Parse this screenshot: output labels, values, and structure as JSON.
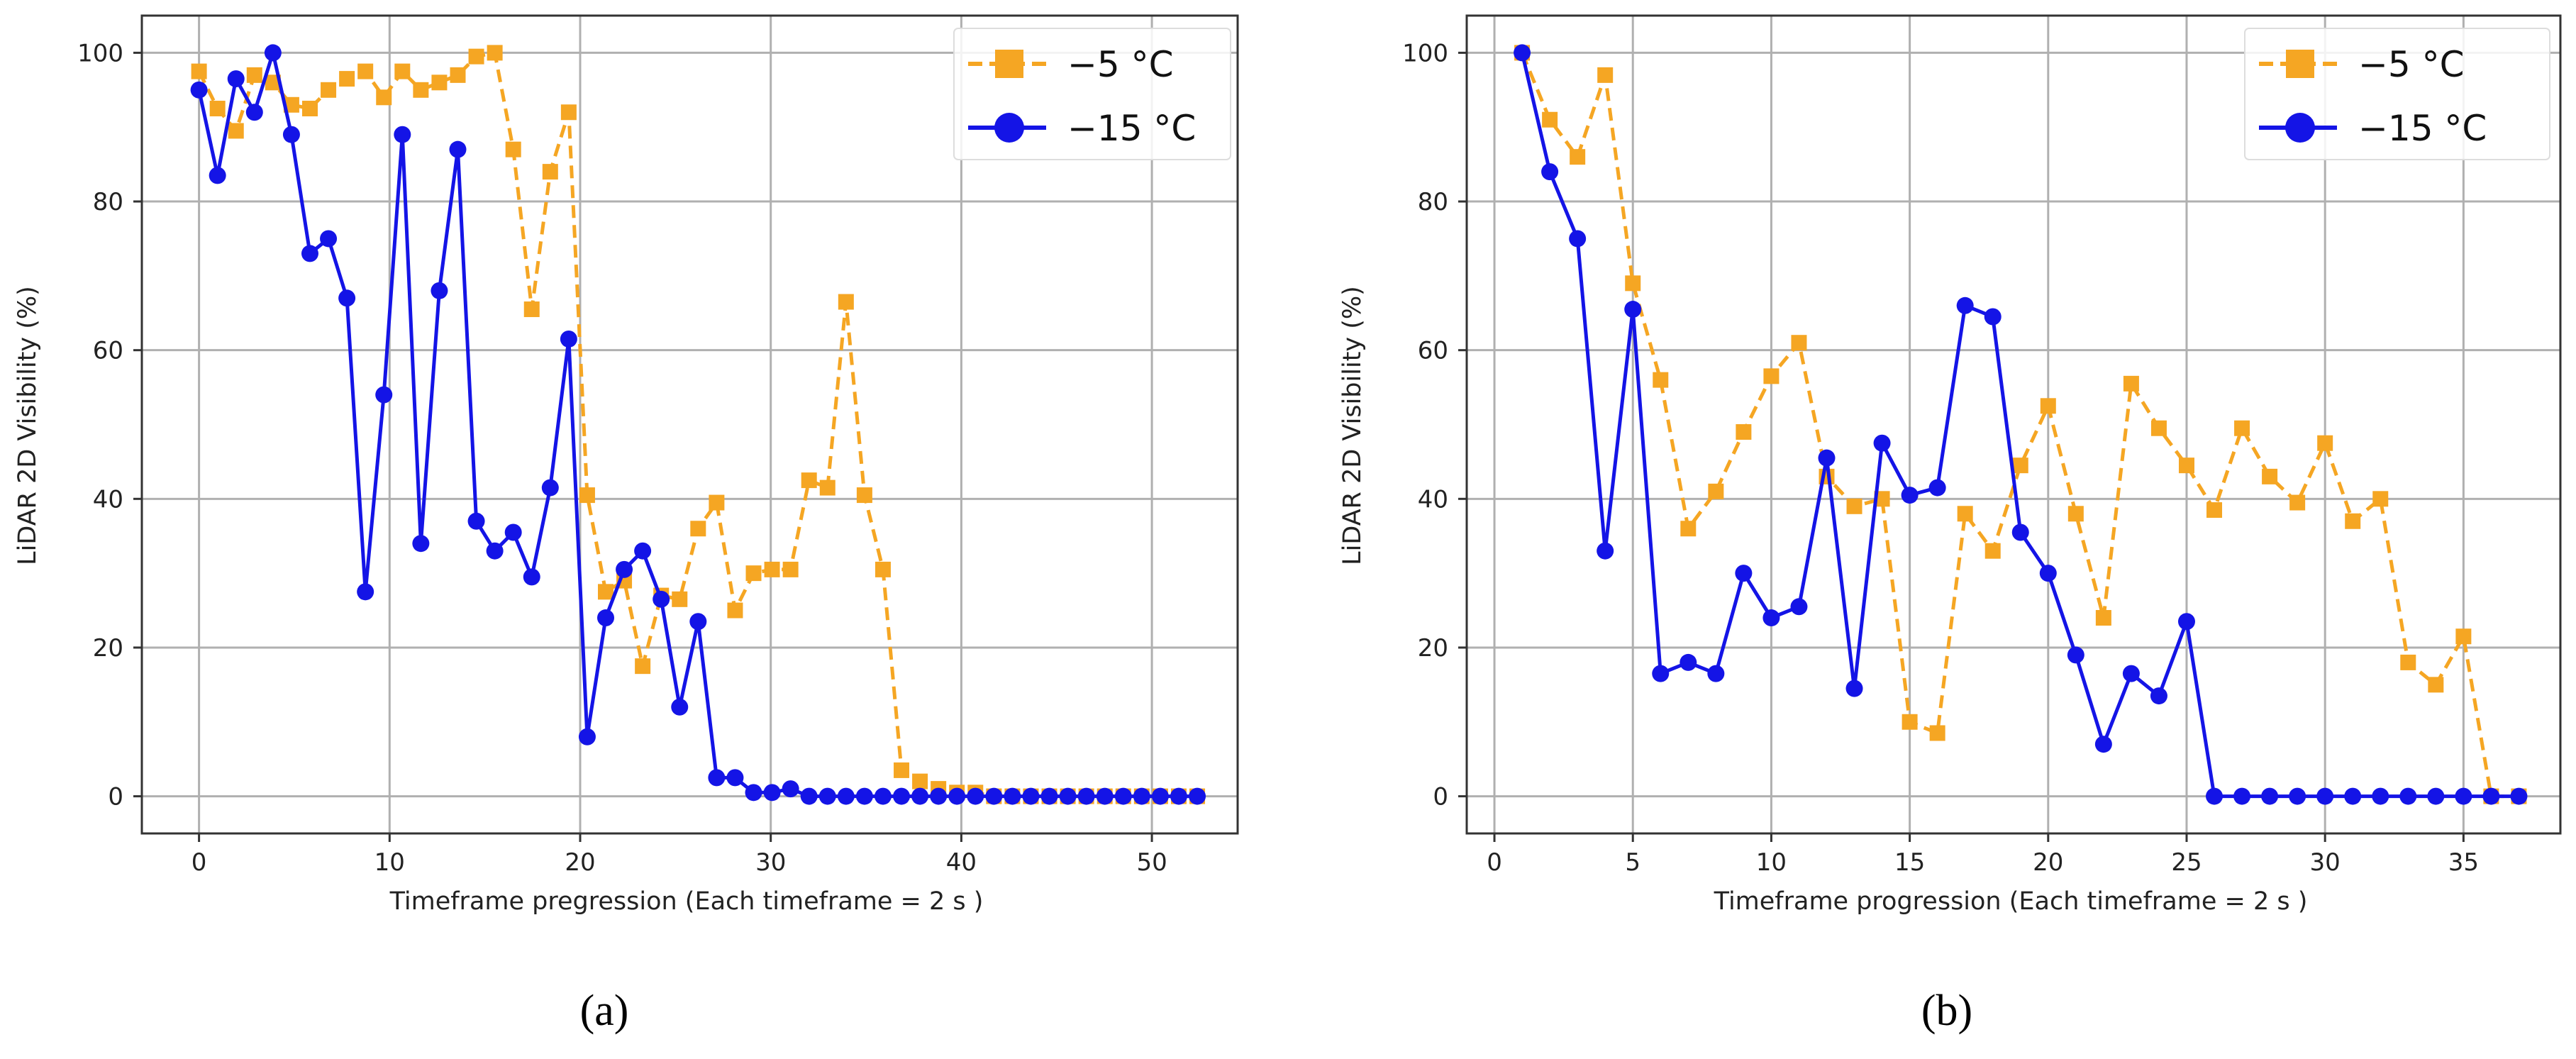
{
  "chart_data": [
    {
      "type": "line",
      "panel_label": "(a)",
      "xlabel": "Timeframe pregression (Each timeframe = 2 s )",
      "ylabel": "LiDAR 2D Visibility (%)",
      "xlim": [
        -3,
        54.5
      ],
      "ylim": [
        -5,
        105
      ],
      "xticks": [
        0,
        10,
        20,
        30,
        40,
        50
      ],
      "yticks": [
        0,
        20,
        40,
        60,
        80,
        100
      ],
      "grid": true,
      "legend_position": "top-right",
      "series": [
        {
          "name": "−5 °C",
          "color": "#f5a623",
          "line_style": "dashed",
          "marker": "square",
          "x": [
            0,
            0.97,
            1.94,
            2.91,
            3.88,
            4.85,
            5.82,
            6.79,
            7.76,
            8.73,
            9.7,
            10.67,
            11.64,
            12.61,
            13.58,
            14.55,
            15.52,
            16.49,
            17.46,
            18.43,
            19.4,
            20.37,
            21.34,
            22.31,
            23.28,
            24.25,
            25.22,
            26.19,
            27.16,
            28.13,
            29.1,
            30.07,
            31.04,
            32.01,
            32.98,
            33.95,
            34.92,
            35.89,
            36.86,
            37.83,
            38.8,
            39.77,
            40.74,
            41.71,
            42.68,
            43.65,
            44.62,
            45.59,
            46.56,
            47.53,
            48.5,
            49.47,
            50.44,
            51.41,
            52.38
          ],
          "y": [
            97.5,
            92.5,
            89.5,
            97,
            96,
            93,
            92.5,
            95,
            96.5,
            97.5,
            94,
            97.5,
            95,
            96,
            97,
            99.5,
            100,
            87,
            65.5,
            84,
            92,
            40.5,
            27.5,
            29,
            17.5,
            27,
            26.5,
            36,
            39.5,
            25,
            30,
            30.5,
            30.5,
            42.5,
            41.5,
            66.5,
            40.5,
            30.5,
            3.5,
            2,
            1,
            0.5,
            0.5,
            0,
            0,
            0,
            0,
            0,
            0,
            0,
            0,
            0,
            0,
            0,
            0
          ]
        },
        {
          "name": "−15 °C",
          "color": "#1414e6",
          "line_style": "solid",
          "marker": "circle",
          "x": [
            0,
            0.97,
            1.94,
            2.91,
            3.88,
            4.85,
            5.82,
            6.79,
            7.76,
            8.73,
            9.7,
            10.67,
            11.64,
            12.61,
            13.58,
            14.55,
            15.52,
            16.49,
            17.46,
            18.43,
            19.4,
            20.37,
            21.34,
            22.31,
            23.28,
            24.25,
            25.22,
            26.19,
            27.16,
            28.13,
            29.1,
            30.07,
            31.04,
            32.01,
            32.98,
            33.95,
            34.92,
            35.89,
            36.86,
            37.83,
            38.8,
            39.77,
            40.74,
            41.71,
            42.68,
            43.65,
            44.62,
            45.59,
            46.56,
            47.53,
            48.5,
            49.47,
            50.44,
            51.41,
            52.38
          ],
          "y": [
            95,
            83.5,
            96.5,
            92,
            100,
            89,
            73,
            75,
            67,
            27.5,
            54,
            89,
            34,
            68,
            87,
            37,
            33,
            35.5,
            29.5,
            41.5,
            61.5,
            8,
            24,
            30.5,
            33,
            26.5,
            12,
            23.5,
            2.5,
            2.5,
            0.5,
            0.5,
            1,
            0,
            0,
            0,
            0,
            0,
            0,
            0,
            0,
            0,
            0,
            0,
            0,
            0,
            0,
            0,
            0,
            0,
            0,
            0,
            0,
            0,
            0
          ]
        }
      ]
    },
    {
      "type": "line",
      "panel_label": "(b)",
      "xlabel": "Timeframe progression (Each timeframe = 2 s )",
      "ylabel": "LiDAR 2D Visibility (%)",
      "xlim": [
        -1,
        38.5
      ],
      "ylim": [
        -5,
        105
      ],
      "xticks": [
        0,
        5,
        10,
        15,
        20,
        25,
        30,
        35
      ],
      "yticks": [
        0,
        20,
        40,
        60,
        80,
        100
      ],
      "grid": true,
      "legend_position": "top-right",
      "series": [
        {
          "name": "−5 °C",
          "color": "#f5a623",
          "line_style": "dashed",
          "marker": "square",
          "x": [
            1,
            2,
            3,
            4,
            5,
            6,
            7,
            8,
            9,
            10,
            11,
            12,
            13,
            14,
            15,
            16,
            17,
            18,
            19,
            20,
            21,
            22,
            23,
            24,
            25,
            26,
            27,
            28,
            29,
            30,
            31,
            32,
            33,
            34,
            35,
            36,
            37
          ],
          "y": [
            100,
            91,
            86,
            97,
            69,
            56,
            36,
            41,
            49,
            56.5,
            61,
            43,
            39,
            40,
            10,
            8.5,
            38,
            33,
            44.5,
            52.5,
            38,
            24,
            55.5,
            49.5,
            44.5,
            38.5,
            49.5,
            43,
            39.5,
            47.5,
            37,
            40,
            18,
            15,
            21.5,
            0,
            0
          ]
        },
        {
          "name": "−15 °C",
          "color": "#1414e6",
          "line_style": "solid",
          "marker": "circle",
          "x": [
            1,
            2,
            3,
            4,
            5,
            6,
            7,
            8,
            9,
            10,
            11,
            12,
            13,
            14,
            15,
            16,
            17,
            18,
            19,
            20,
            21,
            22,
            23,
            24,
            25,
            26,
            27,
            28,
            29,
            30,
            31,
            32,
            33,
            34,
            35,
            36,
            37
          ],
          "y": [
            100,
            84,
            75,
            33,
            65.5,
            16.5,
            18,
            16.5,
            30,
            24,
            25.5,
            45.5,
            14.5,
            47.5,
            40.5,
            41.5,
            66,
            64.5,
            35.5,
            30,
            19,
            7,
            16.5,
            13.5,
            23.5,
            0,
            0,
            0,
            0,
            0,
            0,
            0,
            0,
            0,
            0,
            0,
            0
          ]
        }
      ]
    }
  ]
}
